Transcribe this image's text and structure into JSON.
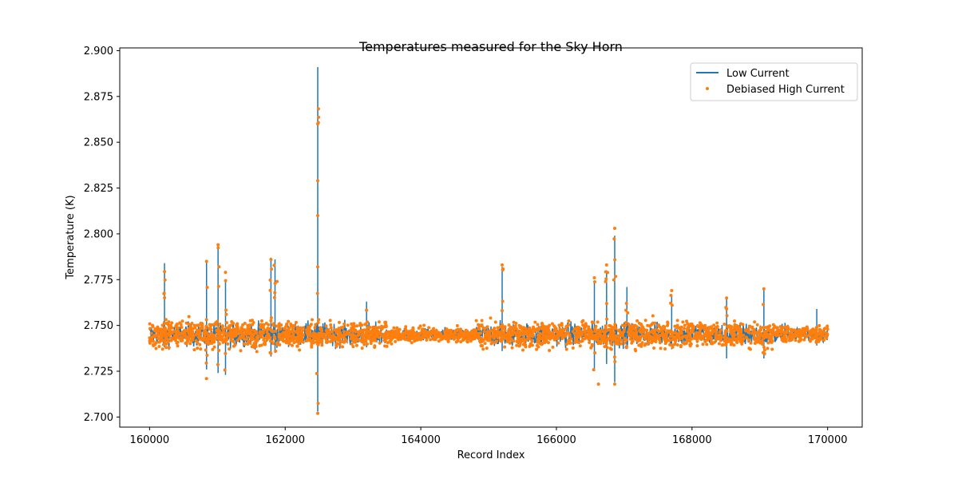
{
  "chart_data": {
    "type": "line",
    "title": "Temperatures measured for the Sky Horn",
    "xlabel": "Record Index",
    "ylabel": "Temperature (K)",
    "xlim": [
      159560,
      170510
    ],
    "ylim": [
      2.6945,
      2.9015
    ],
    "xticks": [
      160000,
      162000,
      164000,
      166000,
      168000,
      170000
    ],
    "yticks": [
      2.7,
      2.725,
      2.75,
      2.775,
      2.8,
      2.825,
      2.85,
      2.875,
      2.9
    ],
    "legend_position": "top-right",
    "grid": false,
    "series": [
      {
        "name": "Low Current",
        "kind": "line",
        "color": "#1f77b4",
        "baseline": 2.745,
        "x_range": [
          160000,
          170000
        ],
        "spikes": [
          {
            "x": 160220,
            "top": 2.784,
            "bottom": 2.738
          },
          {
            "x": 160840,
            "top": 2.785,
            "bottom": 2.726
          },
          {
            "x": 161010,
            "top": 2.793,
            "bottom": 2.724
          },
          {
            "x": 161120,
            "top": 2.775,
            "bottom": 2.723
          },
          {
            "x": 161790,
            "top": 2.787,
            "bottom": 2.733
          },
          {
            "x": 161850,
            "top": 2.786,
            "bottom": 2.735
          },
          {
            "x": 162480,
            "top": 2.891,
            "bottom": 2.703
          },
          {
            "x": 163200,
            "top": 2.763,
            "bottom": 2.738
          },
          {
            "x": 165200,
            "top": 2.782,
            "bottom": 2.736
          },
          {
            "x": 166560,
            "top": 2.774,
            "bottom": 2.725
          },
          {
            "x": 166740,
            "top": 2.78,
            "bottom": 2.729
          },
          {
            "x": 166860,
            "top": 2.799,
            "bottom": 2.719
          },
          {
            "x": 167040,
            "top": 2.771,
            "bottom": 2.738
          },
          {
            "x": 167700,
            "top": 2.767,
            "bottom": 2.737
          },
          {
            "x": 168510,
            "top": 2.765,
            "bottom": 2.732
          },
          {
            "x": 169060,
            "top": 2.77,
            "bottom": 2.732
          },
          {
            "x": 169840,
            "top": 2.759,
            "bottom": 2.739
          }
        ]
      },
      {
        "name": "Debiased High Current",
        "kind": "scatter",
        "color": "#ff7f0e",
        "baseline": 2.745,
        "x_range": [
          160000,
          170000
        ],
        "extreme_points": [
          {
            "x": 162480,
            "y": 2.86
          },
          {
            "x": 162480,
            "y": 2.829
          },
          {
            "x": 162480,
            "y": 2.81
          },
          {
            "x": 162480,
            "y": 2.782
          },
          {
            "x": 162480,
            "y": 2.702
          },
          {
            "x": 161010,
            "y": 2.794
          },
          {
            "x": 160840,
            "y": 2.785
          },
          {
            "x": 161790,
            "y": 2.786
          },
          {
            "x": 161120,
            "y": 2.779
          },
          {
            "x": 161880,
            "y": 2.774
          },
          {
            "x": 165200,
            "y": 2.783
          },
          {
            "x": 166860,
            "y": 2.803
          },
          {
            "x": 166740,
            "y": 2.783
          },
          {
            "x": 166560,
            "y": 2.776
          },
          {
            "x": 166620,
            "y": 2.718
          },
          {
            "x": 166860,
            "y": 2.718
          },
          {
            "x": 160840,
            "y": 2.721
          },
          {
            "x": 167700,
            "y": 2.769
          },
          {
            "x": 169060,
            "y": 2.77
          },
          {
            "x": 168510,
            "y": 2.765
          }
        ]
      }
    ]
  }
}
